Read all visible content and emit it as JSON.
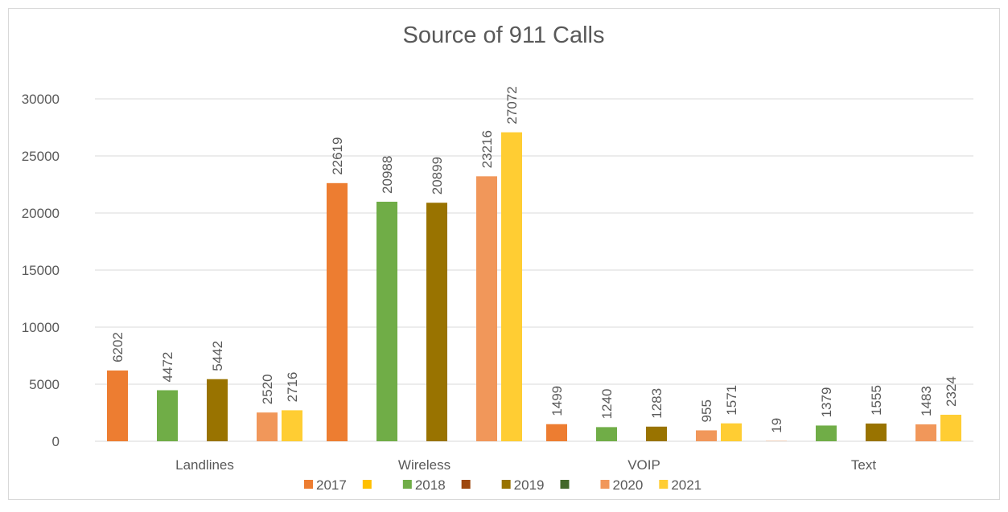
{
  "chart_data": {
    "type": "bar",
    "title": "Source of 911 Calls",
    "categories": [
      "Landlines",
      "Wireless",
      "VOIP",
      "Text"
    ],
    "series": [
      {
        "name": "2017",
        "color": "#ed7d31",
        "values": [
          6202,
          22619,
          1499,
          19
        ]
      },
      {
        "name": null,
        "color": "#ffc000",
        "values": [
          null,
          null,
          null,
          null
        ]
      },
      {
        "name": "2018",
        "color": "#70ad47",
        "values": [
          4472,
          20988,
          1240,
          1379
        ]
      },
      {
        "name": null,
        "color": "#9e480e",
        "values": [
          null,
          null,
          null,
          null
        ]
      },
      {
        "name": "2019",
        "color": "#997300",
        "values": [
          5442,
          20899,
          1283,
          1555
        ]
      },
      {
        "name": null,
        "color": "#43682b",
        "values": [
          null,
          null,
          null,
          null
        ]
      },
      {
        "name": "2020",
        "color": "#f1975a",
        "values": [
          2520,
          23216,
          955,
          1483
        ]
      },
      {
        "name": "2021",
        "color": "#ffcd33",
        "values": [
          2716,
          27072,
          1571,
          2324
        ]
      }
    ],
    "ylim": [
      0,
      30000
    ],
    "yticks": [
      0,
      5000,
      10000,
      15000,
      20000,
      25000,
      30000
    ],
    "grid": true,
    "legend": "bottom"
  }
}
